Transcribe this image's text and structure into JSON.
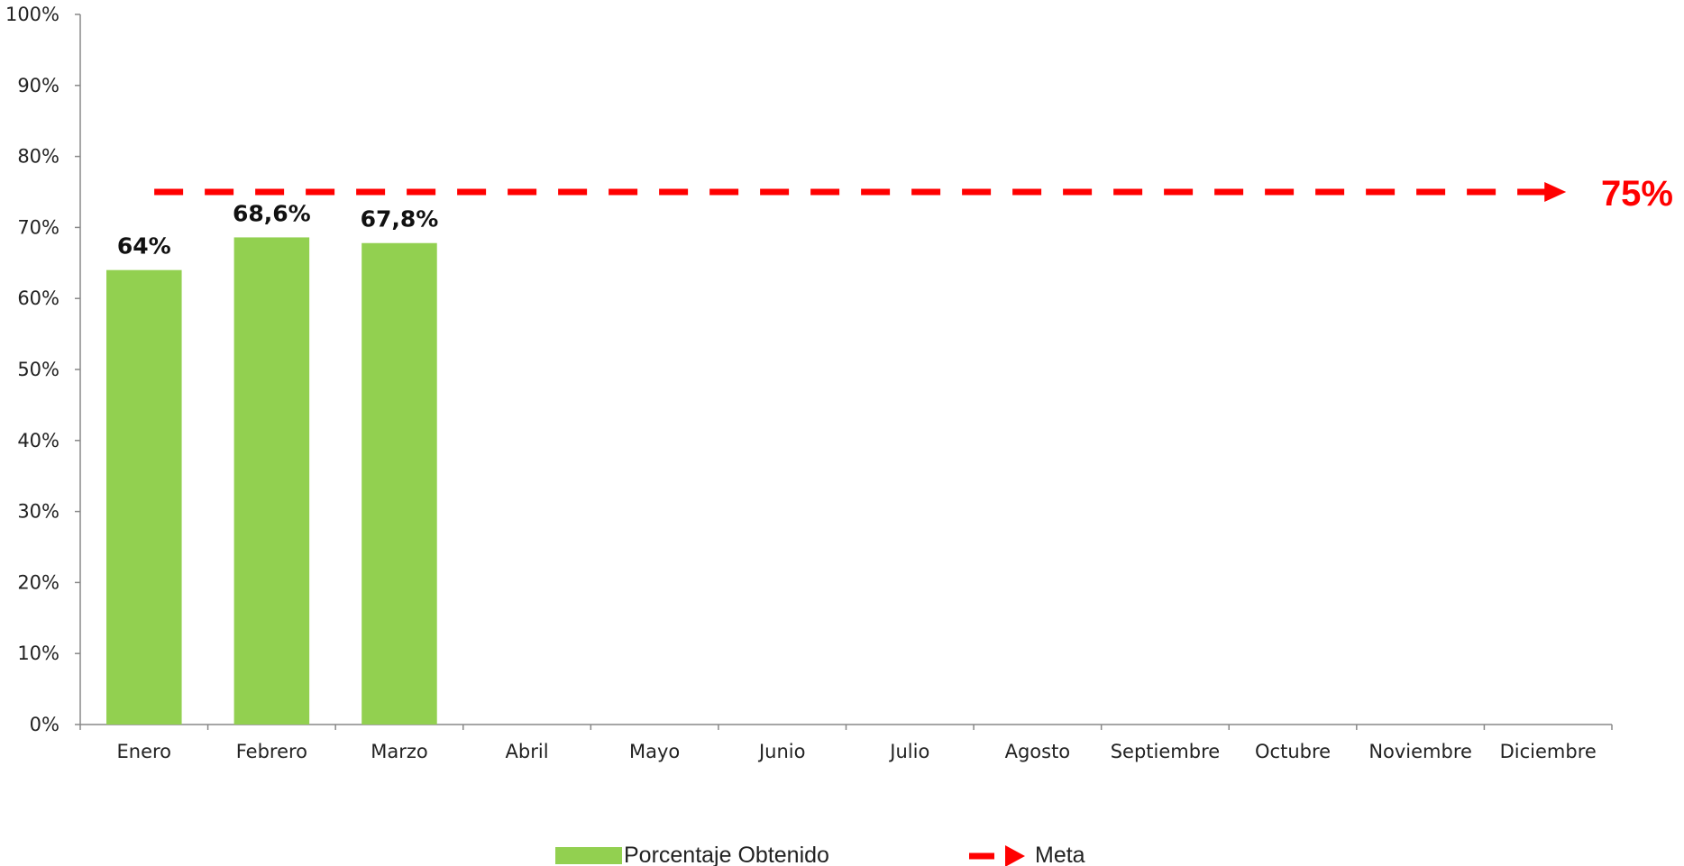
{
  "chart_data": {
    "type": "bar",
    "categories": [
      "Enero",
      "Febrero",
      "Marzo",
      "Abril",
      "Mayo",
      "Junio",
      "Julio",
      "Agosto",
      "Septiembre",
      "Octubre",
      "Noviembre",
      "Diciembre"
    ],
    "series": [
      {
        "name": "Porcentaje Obtenido",
        "type": "bar",
        "color": "#92D050",
        "values": [
          64,
          68.6,
          67.8,
          null,
          null,
          null,
          null,
          null,
          null,
          null,
          null,
          null
        ],
        "data_labels": [
          "64%",
          "68,6%",
          "67,8%",
          "",
          "",
          "",
          "",
          "",
          "",
          "",
          "",
          ""
        ]
      },
      {
        "name": "Meta",
        "type": "line",
        "style": "dashed-arrow",
        "color": "#FF0000",
        "value": 75,
        "value_label": "75%"
      }
    ],
    "ylim": [
      0,
      100
    ],
    "yticks": [
      "0%",
      "10%",
      "20%",
      "30%",
      "40%",
      "50%",
      "60%",
      "70%",
      "80%",
      "90%",
      "100%"
    ],
    "title": "",
    "xlabel": "",
    "ylabel": "",
    "grid": false,
    "legend_position": "bottom"
  }
}
